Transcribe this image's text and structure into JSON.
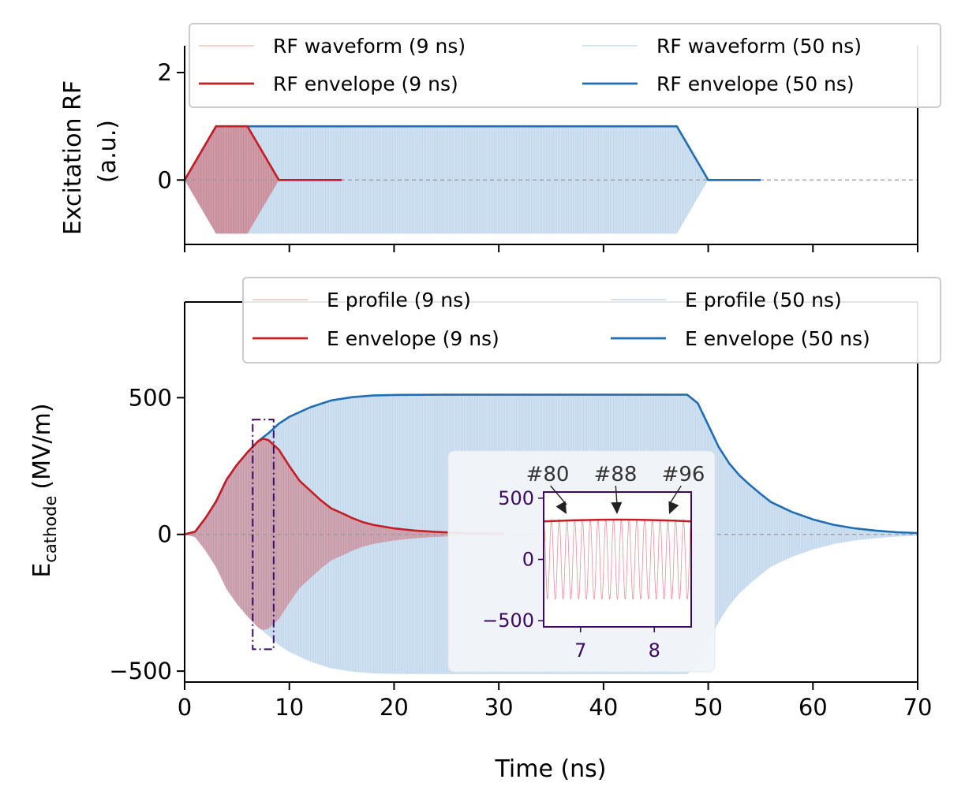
{
  "chart_data": [
    {
      "type": "line",
      "panel": "top",
      "ylabel_line1": "Excitation RF",
      "ylabel_line2": "(a.u.)",
      "xlim": [
        0,
        70
      ],
      "ylim": [
        -1.2,
        2.5
      ],
      "yticks": [
        0,
        2
      ],
      "ytick_labels": [
        "0",
        "2"
      ],
      "xticks": [
        0,
        10,
        20,
        30,
        40,
        50,
        60,
        70
      ],
      "legend": {
        "placement": "top-right",
        "entries": [
          {
            "label": "RF waveform (9 ns)",
            "style": "faint",
            "color": "#d62728"
          },
          {
            "label": "RF waveform (50 ns)",
            "style": "faint",
            "color": "#7fb2d9"
          },
          {
            "label": "RF envelope (9 ns)",
            "style": "solid",
            "color": "#d62728"
          },
          {
            "label": "RF envelope (50 ns)",
            "style": "solid",
            "color": "#1f77b4"
          }
        ]
      },
      "series": [
        {
          "name": "RF envelope (9 ns)",
          "color": "#c41e24",
          "x": [
            0,
            3,
            6,
            9,
            15
          ],
          "y": [
            0,
            1,
            1,
            0,
            0
          ]
        },
        {
          "name": "RF envelope (50 ns)",
          "color": "#1f6eb4",
          "x": [
            0,
            3,
            47,
            50,
            55
          ],
          "y": [
            0,
            1,
            1,
            0,
            0
          ]
        }
      ],
      "waveforms": [
        {
          "name": "RF waveform (9 ns)",
          "color": "#d62728",
          "env_x": [
            0,
            3,
            6,
            9
          ],
          "env_y": [
            0,
            1,
            1,
            0
          ]
        },
        {
          "name": "RF waveform (50 ns)",
          "color": "#a8c8e6",
          "env_x": [
            0,
            3,
            47,
            50
          ],
          "env_y": [
            0,
            1,
            1,
            0
          ]
        }
      ]
    },
    {
      "type": "line",
      "panel": "bottom",
      "xlabel": "Time (ns)",
      "ylabel_main": "E",
      "ylabel_sub": "cathode",
      "ylabel_units": "(MV/m)",
      "xlim": [
        0,
        70
      ],
      "ylim": [
        -540,
        850
      ],
      "yticks": [
        -500,
        0,
        500
      ],
      "ytick_labels": [
        "−500",
        "0",
        "500"
      ],
      "xticks": [
        0,
        10,
        20,
        30,
        40,
        50,
        60,
        70
      ],
      "xtick_labels": [
        "0",
        "10",
        "20",
        "30",
        "40",
        "50",
        "60",
        "70"
      ],
      "legend": {
        "placement": "top-right",
        "entries": [
          {
            "label": "E profile (9 ns)",
            "style": "faint",
            "color": "#d62728"
          },
          {
            "label": "E profile (50 ns)",
            "style": "faint",
            "color": "#7fb2d9"
          },
          {
            "label": "E envelope (9 ns)",
            "style": "solid",
            "color": "#d62728"
          },
          {
            "label": "E envelope (50 ns)",
            "style": "solid",
            "color": "#1f77b4"
          }
        ]
      },
      "series": [
        {
          "name": "E envelope (9 ns)",
          "color": "#c41e24",
          "x": [
            0,
            1,
            2,
            3,
            4,
            5,
            6,
            7,
            7.5,
            8,
            9,
            10,
            11,
            12,
            13,
            14,
            15,
            16,
            17,
            18,
            20,
            22,
            24,
            26,
            28,
            30.5
          ],
          "y": [
            0,
            10,
            60,
            120,
            200,
            255,
            300,
            340,
            350,
            345,
            310,
            250,
            195,
            160,
            125,
            95,
            78,
            60,
            45,
            35,
            22,
            14,
            9,
            6,
            4,
            2
          ]
        },
        {
          "name": "E envelope (50 ns)",
          "color": "#1f6eb4",
          "x": [
            0,
            1,
            2,
            3,
            4,
            5,
            6,
            7,
            8,
            9,
            10,
            12,
            14,
            16,
            18,
            20,
            25,
            30,
            35,
            40,
            45,
            48,
            49,
            50,
            51,
            52,
            53,
            54,
            55,
            56,
            58,
            60,
            62,
            64,
            66,
            68,
            70
          ],
          "y": [
            0,
            10,
            60,
            120,
            200,
            255,
            300,
            340,
            370,
            405,
            430,
            465,
            490,
            502,
            508,
            510,
            511,
            511,
            511,
            511,
            511,
            511,
            480,
            400,
            320,
            260,
            215,
            180,
            148,
            118,
            82,
            55,
            35,
            22,
            14,
            8,
            5
          ]
        }
      ],
      "highlight_window_x": [
        6.5,
        8.5
      ],
      "inset": {
        "xlim": [
          6.5,
          8.5
        ],
        "ylim": [
          -550,
          550
        ],
        "yticks": [
          -500,
          0,
          500
        ],
        "ytick_labels": [
          "−500",
          "0",
          "500"
        ],
        "xticks": [
          7,
          8
        ],
        "xtick_labels": [
          "7",
          "8"
        ],
        "oscillation_count": 19,
        "envelope_y": 325,
        "annotations": [
          {
            "label": "#80",
            "x": 6.8
          },
          {
            "label": "#88",
            "x": 7.5
          },
          {
            "label": "#96",
            "x": 8.2
          }
        ]
      }
    }
  ]
}
